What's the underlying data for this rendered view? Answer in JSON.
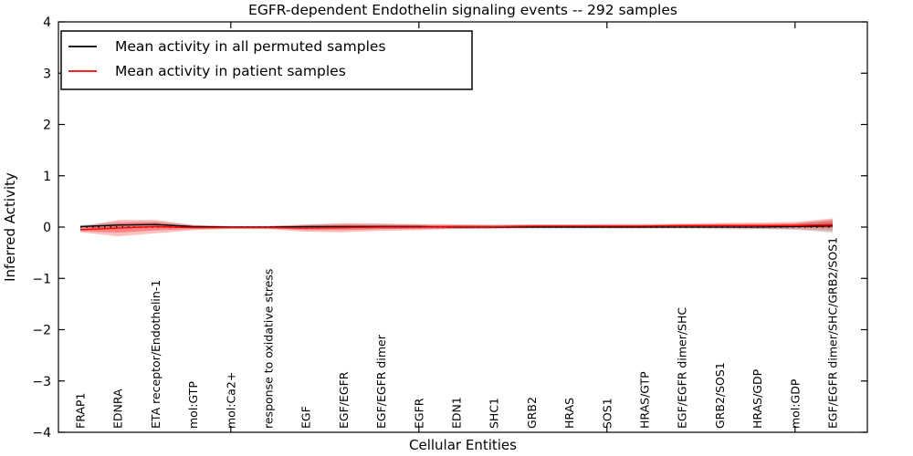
{
  "title": "EGFR-dependent Endothelin signaling events -- 292 samples",
  "axes": {
    "xlabel": "Cellular Entities",
    "ylabel": "Inferred Activity"
  },
  "legend": {
    "items": [
      {
        "label": "Mean activity in all permuted samples",
        "color": "#000000"
      },
      {
        "label": "Mean activity in patient samples",
        "color": "#ff0000"
      }
    ]
  },
  "chart_data": {
    "type": "line",
    "title": "EGFR-dependent Endothelin signaling events -- 292 samples",
    "xlabel": "Cellular Entities",
    "ylabel": "Inferred Activity",
    "ylim": [
      -4,
      4
    ],
    "yticks": [
      4,
      3,
      2,
      1,
      0,
      -1,
      -2,
      -3,
      -4
    ],
    "grid": false,
    "legend_position": "upper left",
    "zero_line": {
      "value": 0,
      "style": "dotted",
      "color": "#000000"
    },
    "top_tick_category_indices": [
      4,
      9,
      14,
      19
    ],
    "categories": [
      "FRAP1",
      "EDNRA",
      "ETA receptor/Endothelin-1",
      "mol:GTP",
      "mol:Ca2+",
      "response to oxidative stress",
      "EGF",
      "EGF/EGFR",
      "EGF/EGFR dimer",
      "EGFR",
      "EDN1",
      "SHC1",
      "GRB2",
      "HRAS",
      "SOS1",
      "HRAS/GTP",
      "EGF/EGFR dimer/SHC",
      "GRB2/SOS1",
      "HRAS/GDP",
      "mol:GDP",
      "EGF/EGFR dimer/SHC/GRB2/SOS1"
    ],
    "series": [
      {
        "name": "Mean activity in all permuted samples",
        "color": "#000000",
        "band_color": "#999999",
        "mean": [
          0.01,
          0.04,
          0.05,
          0.01,
          0.0,
          0.0,
          0.01,
          0.01,
          0.01,
          0.01,
          0.0,
          0.0,
          0.0,
          0.0,
          0.0,
          0.0,
          0.0,
          0.0,
          0.0,
          0.01,
          0.02
        ],
        "std": [
          0.03,
          0.06,
          0.06,
          0.03,
          0.02,
          0.02,
          0.04,
          0.05,
          0.05,
          0.04,
          0.04,
          0.03,
          0.03,
          0.03,
          0.03,
          0.03,
          0.03,
          0.04,
          0.04,
          0.06,
          0.13
        ]
      },
      {
        "name": "Mean activity in patient samples",
        "color": "#ff0000",
        "band_color": "#ff0000",
        "mean": [
          -0.05,
          -0.02,
          0.01,
          -0.01,
          -0.01,
          -0.01,
          -0.02,
          -0.01,
          0.0,
          0.0,
          0.01,
          0.01,
          0.02,
          0.02,
          0.02,
          0.02,
          0.03,
          0.03,
          0.03,
          0.03,
          0.05
        ],
        "std": [
          0.05,
          0.16,
          0.13,
          0.05,
          0.025,
          0.03,
          0.07,
          0.09,
          0.07,
          0.06,
          0.045,
          0.04,
          0.035,
          0.035,
          0.04,
          0.04,
          0.04,
          0.05,
          0.06,
          0.07,
          0.12
        ]
      }
    ]
  }
}
